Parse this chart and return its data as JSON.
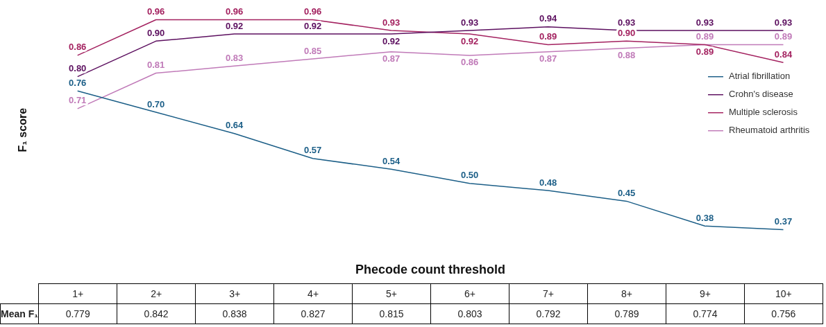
{
  "chart_data": {
    "type": "line",
    "xlabel": "Phecode count threshold",
    "ylabel": "F₁ score",
    "categories": [
      "1+",
      "2+",
      "3+",
      "4+",
      "5+",
      "6+",
      "7+",
      "8+",
      "9+",
      "10+"
    ],
    "series": [
      {
        "name": "Atrial fibrillation",
        "color": "#1b5e87",
        "values": [
          0.76,
          0.7,
          0.64,
          0.57,
          0.54,
          0.5,
          0.48,
          0.45,
          0.38,
          0.37
        ],
        "value_labels": [
          "0.76",
          "0.70",
          "0.64",
          "0.57",
          "0.54",
          "0.50",
          "0.48",
          "0.45",
          "0.38",
          "0.37"
        ]
      },
      {
        "name": "Crohn's disease",
        "color": "#5c0f5f",
        "values": [
          0.8,
          0.9,
          0.92,
          0.92,
          0.92,
          0.93,
          0.94,
          0.93,
          0.93,
          0.93
        ],
        "value_labels": [
          "0.80",
          "0.90",
          "0.92",
          "0.92",
          "0.92",
          "0.93",
          "0.94",
          "0.93",
          "0.93",
          "0.93"
        ]
      },
      {
        "name": "Multiple sclerosis",
        "color": "#a3215f",
        "values": [
          0.86,
          0.96,
          0.96,
          0.96,
          0.93,
          0.92,
          0.89,
          0.9,
          0.89,
          0.84
        ],
        "value_labels": [
          "0.86",
          "0.96",
          "0.96",
          "0.96",
          "0.93",
          "0.92",
          "0.89",
          "0.90",
          "0.89",
          "0.84"
        ]
      },
      {
        "name": "Rheumatoid arthritis",
        "color": "#c07ab8",
        "values": [
          0.71,
          0.81,
          0.83,
          0.85,
          0.87,
          0.86,
          0.87,
          0.88,
          0.89,
          0.89
        ],
        "value_labels": [
          "0.71",
          "0.81",
          "0.83",
          "0.85",
          "0.87",
          "0.86",
          "0.87",
          "0.88",
          "0.89",
          "0.89"
        ]
      }
    ],
    "legend": "right",
    "line_style": "solid",
    "annotations": [
      "Mean F₁",
      "0.779",
      "0.842",
      "0.838",
      "0.827",
      "0.815",
      "0.803",
      "0.792",
      "0.789",
      "0.774",
      "0.756"
    ]
  }
}
